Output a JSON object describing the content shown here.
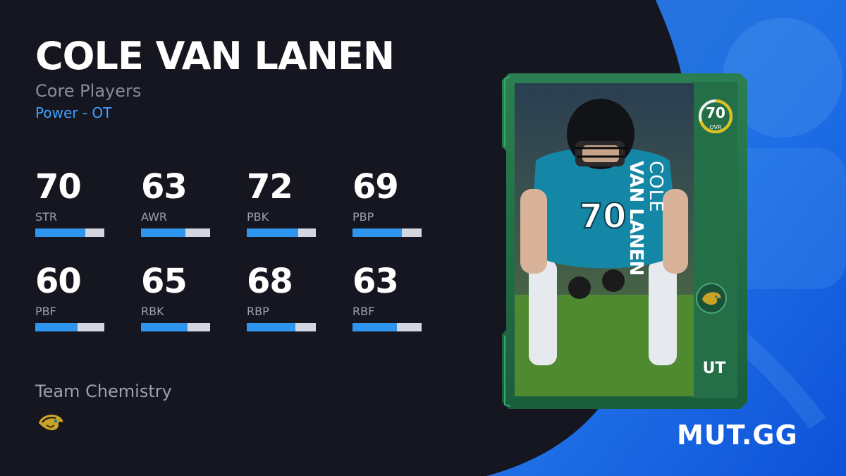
{
  "player": {
    "name": "COLE VAN LANEN",
    "program": "Core Players",
    "archetype": "Power - OT"
  },
  "stats": [
    {
      "label": "STR",
      "value": "70",
      "fill": 0.72
    },
    {
      "label": "AWR",
      "value": "63",
      "fill": 0.64
    },
    {
      "label": "PBK",
      "value": "72",
      "fill": 0.74
    },
    {
      "label": "PBP",
      "value": "69",
      "fill": 0.71
    },
    {
      "label": "PBF",
      "value": "60",
      "fill": 0.61
    },
    {
      "label": "RBK",
      "value": "65",
      "fill": 0.67
    },
    {
      "label": "RBP",
      "value": "68",
      "fill": 0.7
    },
    {
      "label": "RBF",
      "value": "63",
      "fill": 0.64
    }
  ],
  "chemistry": {
    "title": "Team Chemistry",
    "team_icon": "jaguars-logo-icon"
  },
  "card": {
    "ovr": "70",
    "ovr_label": "OVR",
    "ovr_fill": 0.7,
    "first_name": "COLE",
    "last_name": "VAN LANEN",
    "tag": "UT",
    "team_icon": "jaguars-badge-icon",
    "jersey_number": "70"
  },
  "brand": "MUT.GG",
  "colors": {
    "background": "#15161f",
    "accent_blue": "#2f96f0",
    "archetype_blue": "#3fa0ff",
    "card_green": "#1f6e46",
    "ovr_ring": "#e2c21a"
  }
}
